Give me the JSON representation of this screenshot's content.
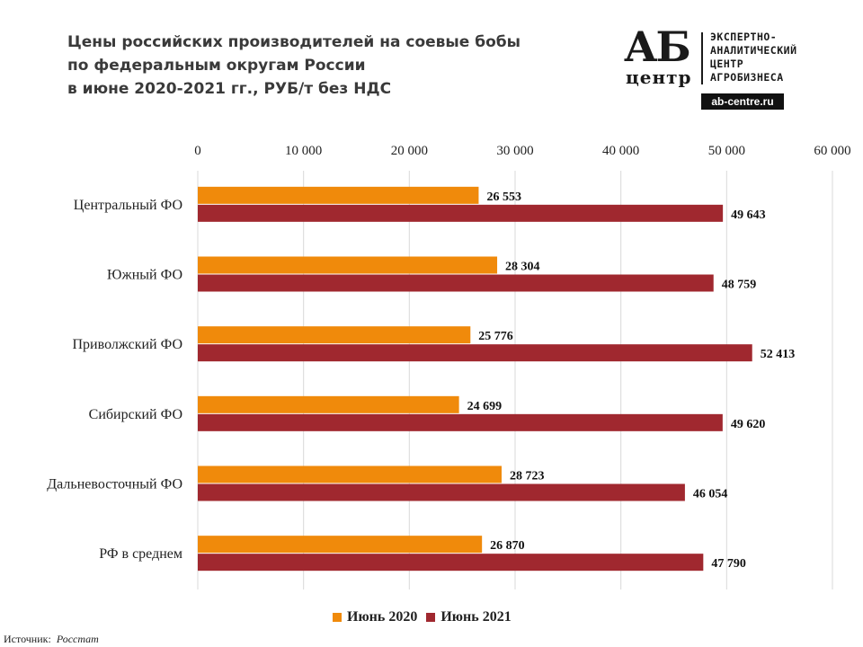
{
  "title_lines": [
    "Цены российских производителей на соевые бобы",
    "по федеральным округам России",
    "в июне 2020-2021 гг., РУБ/т без НДС"
  ],
  "logo": {
    "mark_top": "АБ",
    "mark_bottom": "центр",
    "text_lines": [
      "ЭКСПЕРТНО-",
      "АНАЛИТИЧЕСКИЙ",
      "ЦЕНТР",
      "АГРОБИЗНЕСА"
    ],
    "url": "ab-centre.ru"
  },
  "legend": {
    "items": [
      {
        "label": "Июнь 2020",
        "color": "#f08a0b"
      },
      {
        "label": "Июнь 2021",
        "color": "#a0282f"
      }
    ]
  },
  "source": {
    "label": "Источник:",
    "value": "Росстат"
  },
  "chart_data": {
    "type": "bar",
    "orientation": "horizontal",
    "title": "Цены российских производителей на соевые бобы по федеральным округам России в июне 2020-2021 гг., РУБ/т без НДС",
    "categories": [
      "Центральный ФО",
      "Южный ФО",
      "Приволжский ФО",
      "Сибирский ФО",
      "Дальневосточный ФО",
      "РФ в среднем"
    ],
    "series": [
      {
        "name": "Июнь 2020",
        "color": "#f08a0b",
        "values": [
          26553,
          28304,
          25776,
          24699,
          28723,
          26870
        ],
        "labels": [
          "26 553",
          "28 304",
          "25 776",
          "24 699",
          "28 723",
          "26 870"
        ]
      },
      {
        "name": "Июнь 2021",
        "color": "#a0282f",
        "values": [
          49643,
          48759,
          52413,
          49620,
          46054,
          47790
        ],
        "labels": [
          "49 643",
          "48 759",
          "52 413",
          "49 620",
          "46 054",
          "47 790"
        ]
      }
    ],
    "xlim": [
      0,
      60000
    ],
    "xticks": [
      0,
      10000,
      20000,
      30000,
      40000,
      50000,
      60000
    ],
    "xtick_labels": [
      "0",
      "10 000",
      "20 000",
      "30 000",
      "40 000",
      "50 000",
      "60 000"
    ],
    "axis_position": "top",
    "grid": true,
    "legend_position": "bottom"
  }
}
